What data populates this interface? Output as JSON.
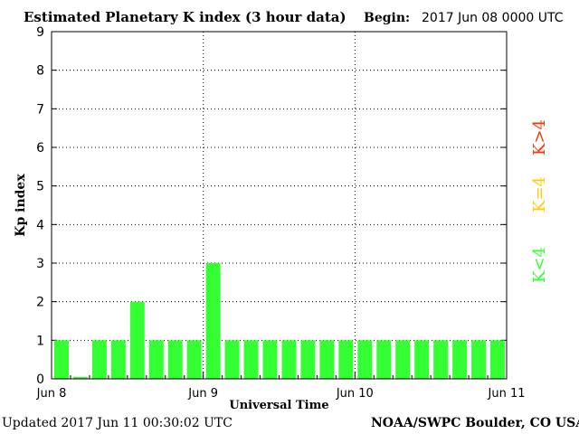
{
  "header": {
    "title": "Estimated Planetary K index (3 hour data)",
    "begin_label": "Begin:",
    "begin_value": "2017 Jun 08 0000 UTC"
  },
  "footer": {
    "updated": "Updated 2017 Jun 11 00:30:02 UTC",
    "source": "NOAA/SWPC Boulder, CO USA"
  },
  "legend": {
    "high": "K>4",
    "equal": "K=4",
    "low": "K<4",
    "colors": {
      "high": "#ff3300",
      "equal": "#ffcc00",
      "low": "#33ff33"
    }
  },
  "chart_data": {
    "type": "bar",
    "title": "Estimated Planetary K index (3 hour data)",
    "xlabel": "Universal Time",
    "ylabel": "Kp index",
    "ylim": [
      0,
      9
    ],
    "yticks": [
      "0",
      "1",
      "2",
      "3",
      "4",
      "5",
      "6",
      "7",
      "8",
      "9"
    ],
    "xticks": [
      "Jun 8",
      "Jun 9",
      "Jun 10",
      "Jun 11"
    ],
    "grid": "dotted",
    "bar_color": "#33ff33",
    "values": [
      1,
      0.05,
      1,
      1,
      2,
      1,
      1,
      1,
      3,
      1,
      1,
      1,
      1,
      1,
      1,
      1,
      1,
      1,
      1,
      1,
      1,
      1,
      1,
      1
    ]
  }
}
